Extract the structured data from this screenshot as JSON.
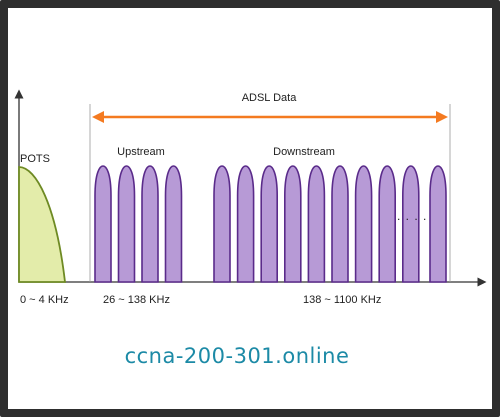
{
  "diagram": {
    "span_label": "ADSL Data",
    "pots_label": "POTS",
    "upstream_label": "Upstream",
    "downstream_label": "Downstream",
    "ellipsis": ". . . .",
    "freq_labels": {
      "pots": "0 ~ 4 KHz",
      "upstream": "26 ~ 138 KHz",
      "downstream": "138 ~ 1100 KHz"
    },
    "upstream_channel_count": 4,
    "downstream_channel_count": 9,
    "extra_channel_count": 1,
    "watermark": "ccna-200-301.online",
    "colors": {
      "arrow": "#f47a20",
      "pots_fill": "#e3ecaa",
      "pots_stroke": "#6e8a23",
      "channel_fill": "#b79ad6",
      "channel_stroke": "#5a2b8a",
      "axis": "#333333",
      "watermark": "#1c8aa6"
    }
  }
}
